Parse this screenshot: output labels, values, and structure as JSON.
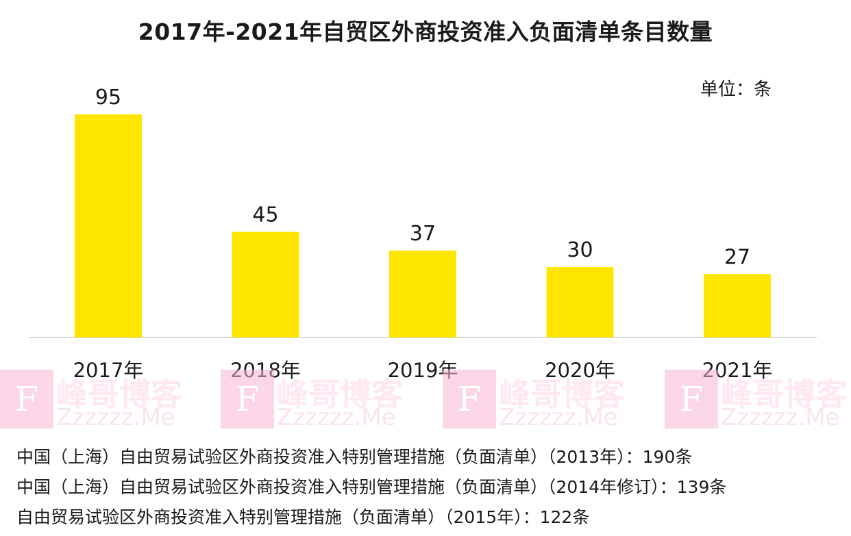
{
  "chart_data": {
    "type": "bar",
    "title": "2017年-2021年自贸区外商投资准入负面清单条目数量",
    "unit_label": "单位：条",
    "categories": [
      "2017年",
      "2018年",
      "2019年",
      "2020年",
      "2021年"
    ],
    "values": [
      95,
      45,
      37,
      30,
      27
    ],
    "ylim": [
      0,
      100
    ],
    "grid": false,
    "bar_color": "#FFE600",
    "axis_color": "#d9d9d9"
  },
  "notes": [
    "中国（上海）自由贸易试验区外商投资准入特别管理措施（负面清单）（2013年）：190条",
    "中国（上海）自由贸易试验区外商投资准入特别管理措施（负面清单）（2014年修订）：139条",
    "自由贸易试验区外商投资准入特别管理措施（负面清单）（2015年）：122条"
  ],
  "watermark": {
    "logo_letter": "F",
    "name": "峰哥博客",
    "sub": "Zzzzzz.Me"
  }
}
